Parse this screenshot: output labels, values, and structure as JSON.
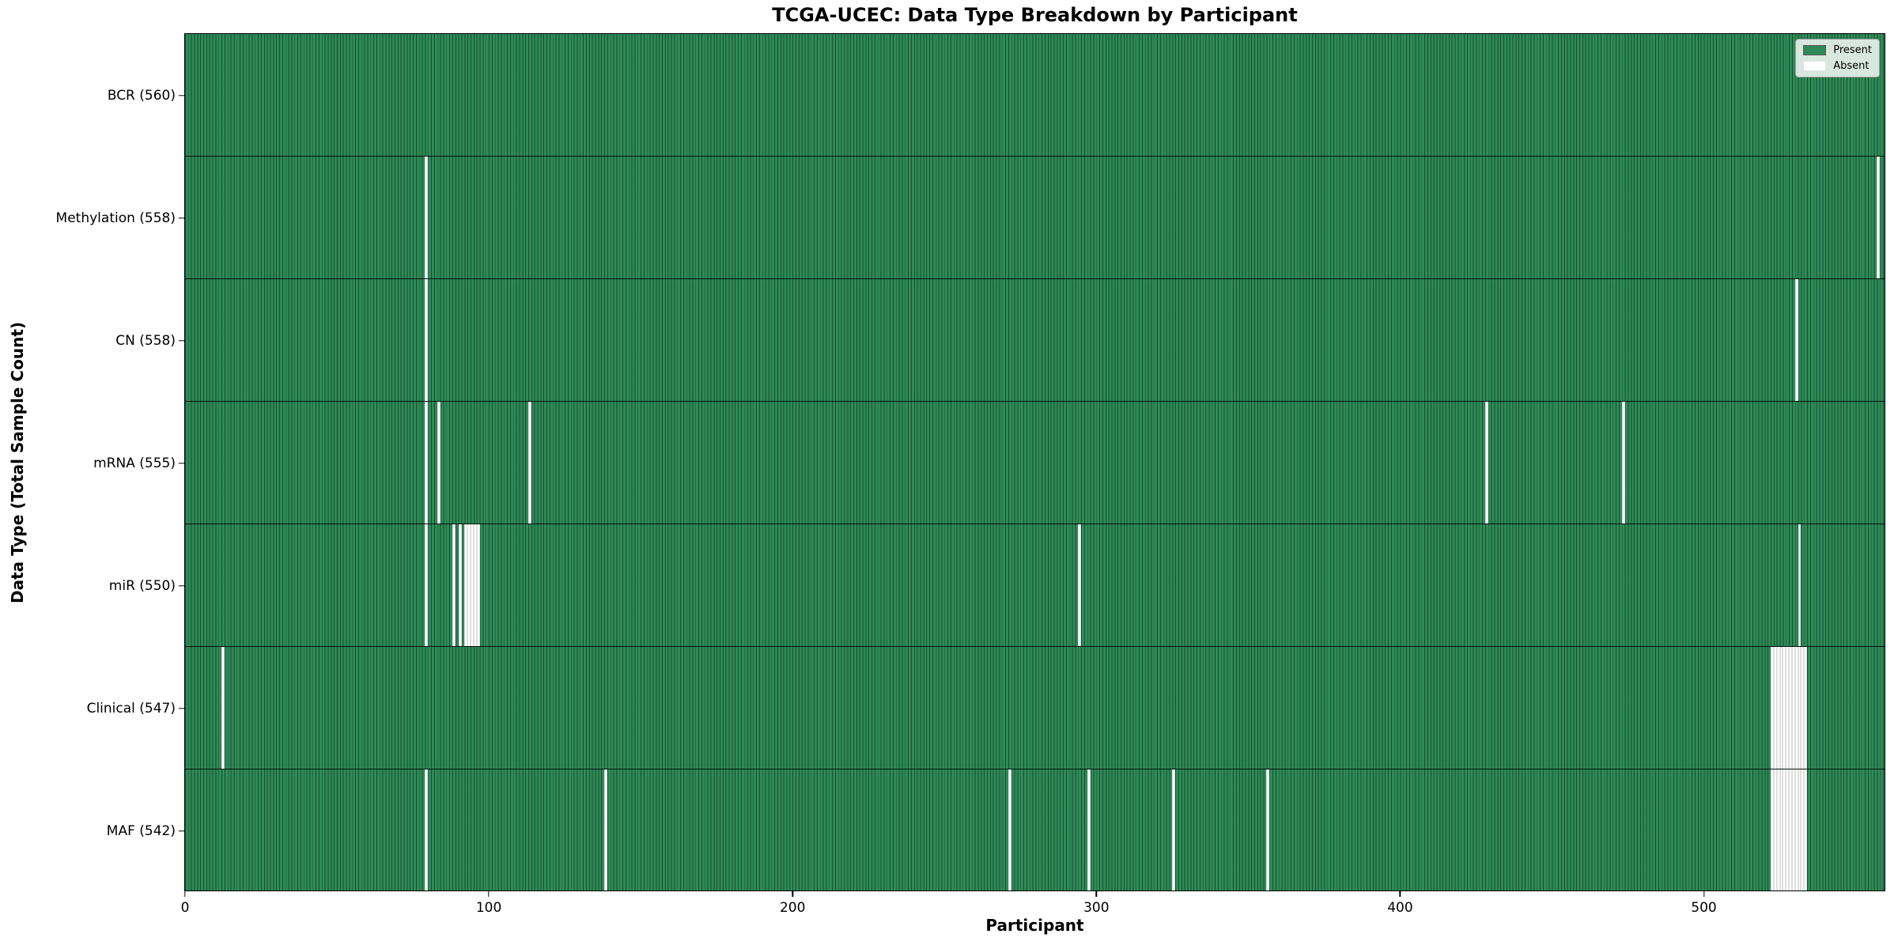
{
  "title": "TCGA-UCEC: Data Type Breakdown by Participant",
  "x_axis_label": "Participant",
  "y_axis_label": "Data Type (Total Sample Count)",
  "legend": {
    "items": [
      {
        "label": "Present",
        "color": "#2e8b57"
      },
      {
        "label": "Absent",
        "color": "#ffffff"
      }
    ]
  },
  "colors": {
    "present": "#2e8b57",
    "absent": "#ffffff",
    "bar_edge": "#0a2819",
    "axis": "#000000"
  },
  "chart_data": {
    "type": "heatmap",
    "title": "TCGA-UCEC: Data Type Breakdown by Participant",
    "xlabel": "Participant",
    "ylabel": "Data Type (Total Sample Count)",
    "legend_entries": [
      "Present",
      "Absent"
    ],
    "legend_position": "upper right",
    "grid": false,
    "n_participants": 560,
    "xlim": [
      0,
      560
    ],
    "x_ticks": [
      0,
      100,
      200,
      300,
      400,
      500
    ],
    "value_encoding": {
      "present": "#2e8b57",
      "absent": "#ffffff"
    },
    "rows": [
      {
        "name": "BCR",
        "label": "BCR (560)",
        "present_count": 560,
        "absent_participants": []
      },
      {
        "name": "Methylation",
        "label": "Methylation (558)",
        "present_count": 558,
        "absent_participants": [
          79,
          557
        ]
      },
      {
        "name": "CN",
        "label": "CN (558)",
        "present_count": 558,
        "absent_participants": [
          79,
          530
        ]
      },
      {
        "name": "mRNA",
        "label": "mRNA (555)",
        "present_count": 555,
        "absent_participants": [
          79,
          83,
          113,
          428,
          473
        ]
      },
      {
        "name": "miR",
        "label": "miR (550)",
        "present_count": 550,
        "absent_participants": [
          79,
          88,
          90,
          92,
          93,
          94,
          95,
          96,
          294,
          531
        ]
      },
      {
        "name": "Clinical",
        "label": "Clinical (547)",
        "present_count": 547,
        "absent_participants": [
          12,
          522,
          523,
          524,
          525,
          526,
          527,
          528,
          529,
          530,
          531,
          532,
          533
        ]
      },
      {
        "name": "MAF",
        "label": "MAF (542)",
        "present_count": 542,
        "absent_participants": [
          79,
          138,
          271,
          297,
          325,
          356,
          522,
          523,
          524,
          525,
          526,
          527,
          528,
          529,
          530,
          531,
          532,
          533
        ]
      }
    ]
  }
}
